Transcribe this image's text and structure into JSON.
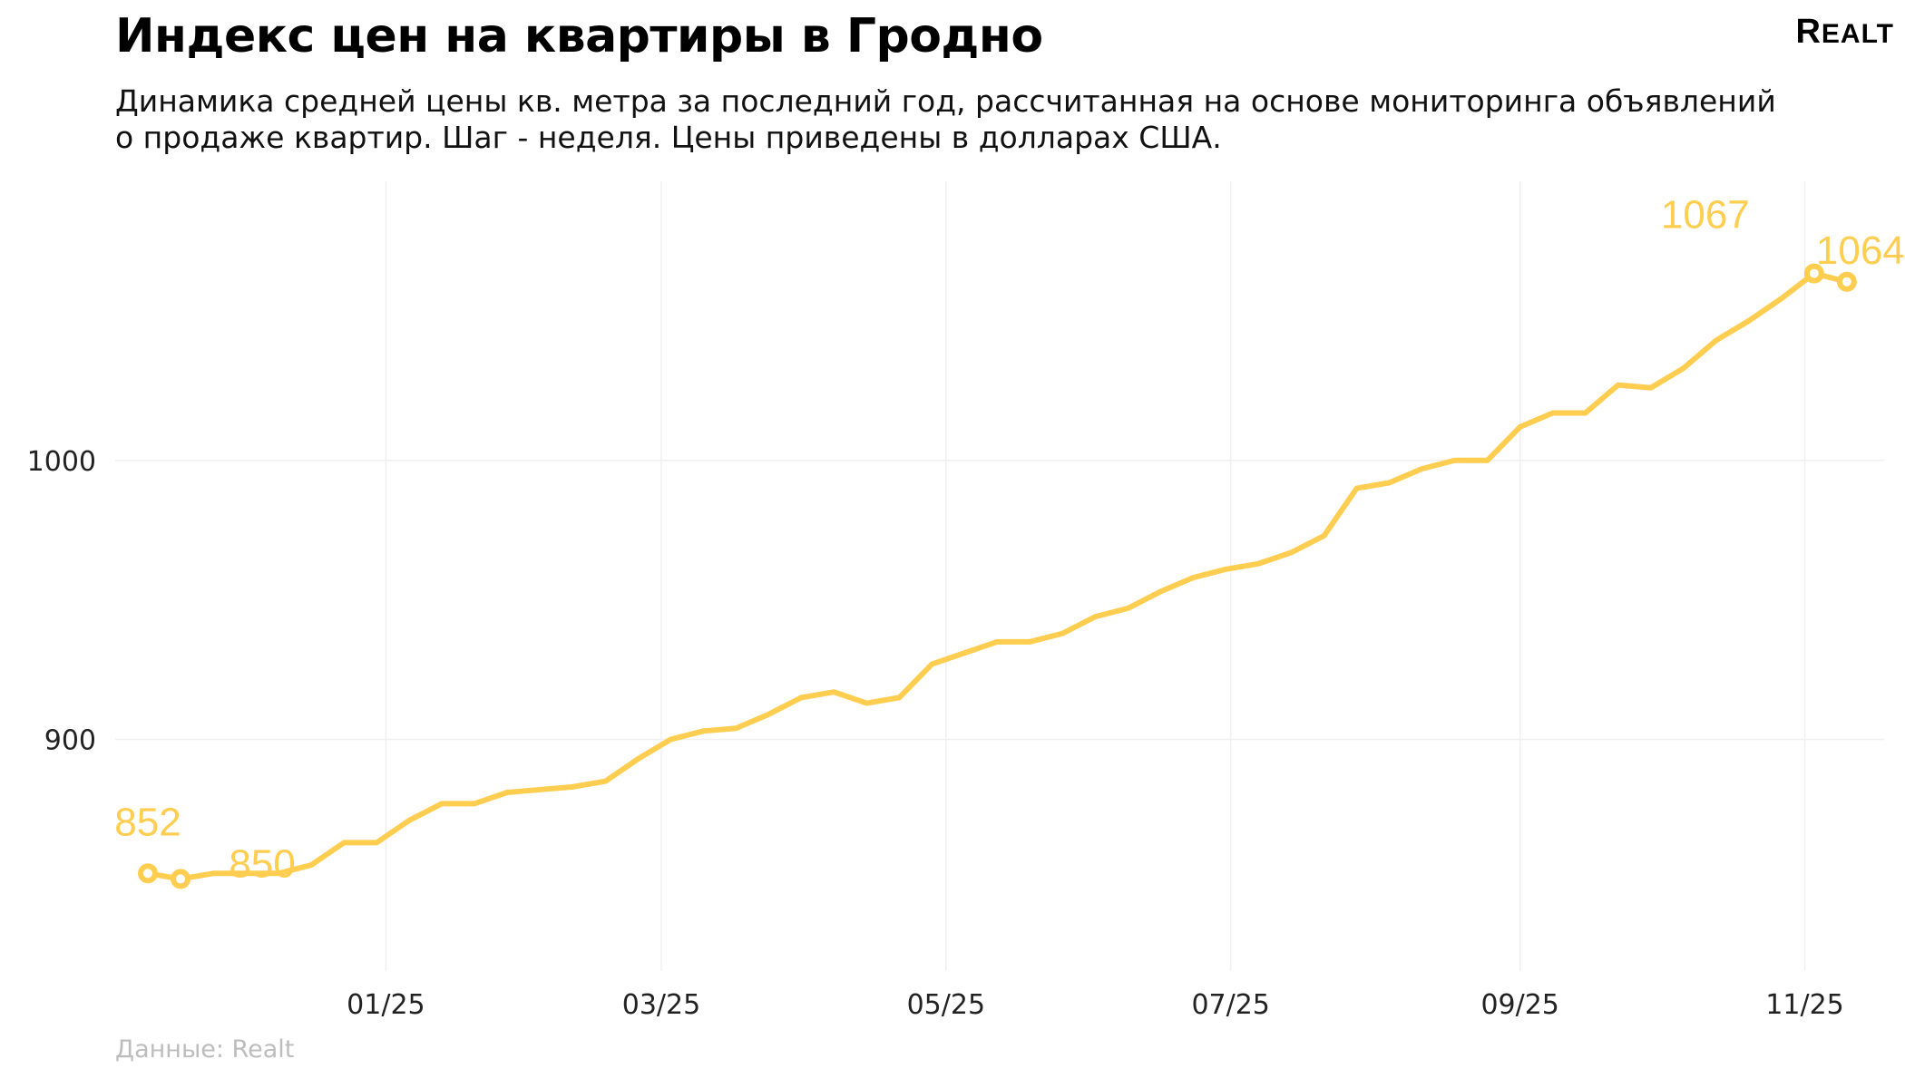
{
  "title": "Индекс цен на квартиры в Гродно",
  "subtitle": "Динамика средней цены кв. метра за последний год, рассчитанная на основе мониторинга объявлений о продаже квартир. Шаг - неделя. Цены приведены в долларах США.",
  "logo": "Realt",
  "footer": "Данные: Realt",
  "chart_data": {
    "type": "line",
    "title": "Индекс цен на квартиры в Гродно",
    "xlabel": "",
    "ylabel": "",
    "x_ticks": [
      {
        "date": "2025-01-01",
        "label": "01/25"
      },
      {
        "date": "2025-03-01",
        "label": "03/25"
      },
      {
        "date": "2025-05-01",
        "label": "05/25"
      },
      {
        "date": "2025-07-01",
        "label": "07/25"
      },
      {
        "date": "2025-09-01",
        "label": "09/25"
      },
      {
        "date": "2025-11-01",
        "label": "11/25"
      }
    ],
    "y_ticks": [
      900,
      1000
    ],
    "xlim": [
      "2024-11-04",
      "2025-11-18"
    ],
    "ylim": [
      817,
      1100
    ],
    "grid": true,
    "line_color": "#FFCD4F",
    "x": [
      "2024-11-11",
      "2024-11-18",
      "2024-11-25",
      "2024-12-02",
      "2024-12-09",
      "2024-12-16",
      "2024-12-23",
      "2024-12-30",
      "2025-01-06",
      "2025-01-13",
      "2025-01-20",
      "2025-01-27",
      "2025-02-03",
      "2025-02-10",
      "2025-02-17",
      "2025-02-24",
      "2025-03-03",
      "2025-03-10",
      "2025-03-17",
      "2025-03-24",
      "2025-03-31",
      "2025-04-07",
      "2025-04-14",
      "2025-04-21",
      "2025-04-28",
      "2025-05-05",
      "2025-05-12",
      "2025-05-19",
      "2025-05-26",
      "2025-06-02",
      "2025-06-09",
      "2025-06-16",
      "2025-06-23",
      "2025-06-30",
      "2025-07-07",
      "2025-07-14",
      "2025-07-21",
      "2025-07-28",
      "2025-08-04",
      "2025-08-11",
      "2025-08-18",
      "2025-08-25",
      "2025-09-01",
      "2025-09-08",
      "2025-09-15",
      "2025-09-22",
      "2025-09-29",
      "2025-10-06",
      "2025-10-13",
      "2025-10-20",
      "2025-10-27",
      "2025-11-03",
      "2025-11-10"
    ],
    "values": [
      852,
      850,
      852,
      852,
      852,
      855,
      863,
      863,
      871,
      877,
      877,
      881,
      882,
      883,
      885,
      893,
      900,
      903,
      904,
      909,
      915,
      917,
      913,
      915,
      927,
      931,
      935,
      935,
      938,
      944,
      947,
      953,
      958,
      961,
      963,
      967,
      973,
      990,
      992,
      997,
      1000,
      1000,
      1012,
      1017,
      1017,
      1027,
      1026,
      1033,
      1043,
      1050,
      1058,
      1067,
      1064
    ],
    "annotations": [
      {
        "index": 0,
        "label": "852"
      },
      {
        "index": 1,
        "label": "850"
      },
      {
        "index": 51,
        "label": "1067"
      },
      {
        "index": 52,
        "label": "1064"
      }
    ]
  }
}
